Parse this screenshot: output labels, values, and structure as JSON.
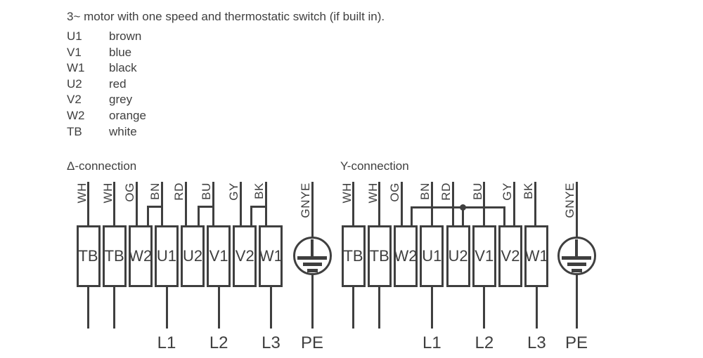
{
  "page": {
    "title": "3~ motor with one speed and thermostatic switch (if built in)."
  },
  "legend": [
    {
      "code": "U1",
      "color": "brown"
    },
    {
      "code": "V1",
      "color": "blue"
    },
    {
      "code": "W1",
      "color": "black"
    },
    {
      "code": "U2",
      "color": "red"
    },
    {
      "code": "V2",
      "color": "grey"
    },
    {
      "code": "W2",
      "color": "orange"
    },
    {
      "code": "TB",
      "color": "white"
    }
  ],
  "diagrams": [
    {
      "title": "Δ-connection",
      "terminals": [
        "TB",
        "TB",
        "W2",
        "U1",
        "U2",
        "V1",
        "V2",
        "W1"
      ],
      "wire_labels": [
        "WH",
        "WH",
        "OG",
        "BN",
        "RD",
        "BU",
        "GY",
        "BK"
      ],
      "earth_label": "GNYE",
      "bottom_labels": [
        "L1",
        "L2",
        "L3",
        "PE"
      ]
    },
    {
      "title": "Y-connection",
      "terminals": [
        "TB",
        "TB",
        "W2",
        "U1",
        "U2",
        "V1",
        "V2",
        "W1"
      ],
      "wire_labels": [
        "WH",
        "WH",
        "OG",
        "BN",
        "RD",
        "BU",
        "GY",
        "BK"
      ],
      "earth_label": "GNYE",
      "bottom_labels": [
        "L1",
        "L2",
        "L3",
        "PE"
      ]
    }
  ],
  "colors": {
    "ink": "#3f3f3f"
  }
}
